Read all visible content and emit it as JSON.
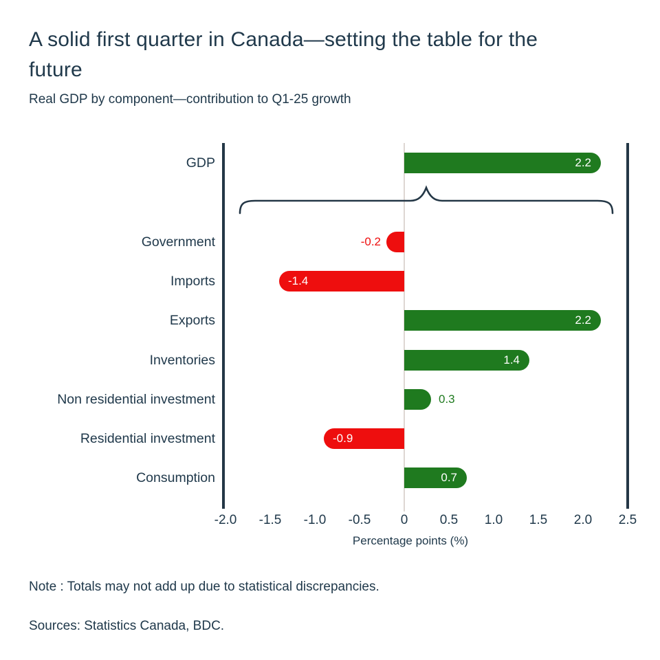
{
  "header": {
    "title": "A solid first quarter in Canada—setting the table for the future",
    "subtitle": "Real GDP by component—contribution to Q1-25 growth"
  },
  "footer": {
    "note": "Note : Totals may not add up due to statistical discrepancies.",
    "sources": "Sources: Statistics Canada, BDC."
  },
  "colors": {
    "positive": "#1f7a1f",
    "negative": "#ee0e0e",
    "text": "#20394b",
    "frame": "#243746",
    "zero_line": "#ded7d2",
    "inside_label": "#ffffff"
  },
  "chart_data": {
    "type": "bar",
    "orientation": "horizontal",
    "title": "A solid first quarter in Canada—setting the table for the future",
    "subtitle": "Real GDP by component—contribution to Q1-25 growth",
    "categories": [
      "GDP",
      "Government",
      "Imports",
      "Exports",
      "Inventories",
      "Non residential investment",
      "Residential investment",
      "Consumption"
    ],
    "values": [
      2.2,
      -0.2,
      -1.4,
      2.2,
      1.4,
      0.3,
      -0.9,
      0.7
    ],
    "value_labels": [
      "2.2",
      "-0.2",
      "-1.4",
      "2.2",
      "1.4",
      "0.3",
      "-0.9",
      "0.7"
    ],
    "label_inside": [
      true,
      false,
      true,
      true,
      true,
      false,
      true,
      true
    ],
    "xlabel": "Percentage points (%)",
    "x_ticks": [
      -2.0,
      -1.5,
      -1.0,
      -0.5,
      0,
      0.5,
      1.0,
      1.5,
      2.0,
      2.5
    ],
    "x_tick_labels": [
      "-2.0",
      "-1.5",
      "-1.0",
      "-0.5",
      "0",
      "0.5",
      "1.0",
      "1.5",
      "2.0",
      "2.5"
    ],
    "xlim": [
      -2.05,
      2.55
    ],
    "grid": false,
    "legend": "none",
    "annotation": "curly brace grouping the component bars beneath the GDP total bar"
  }
}
